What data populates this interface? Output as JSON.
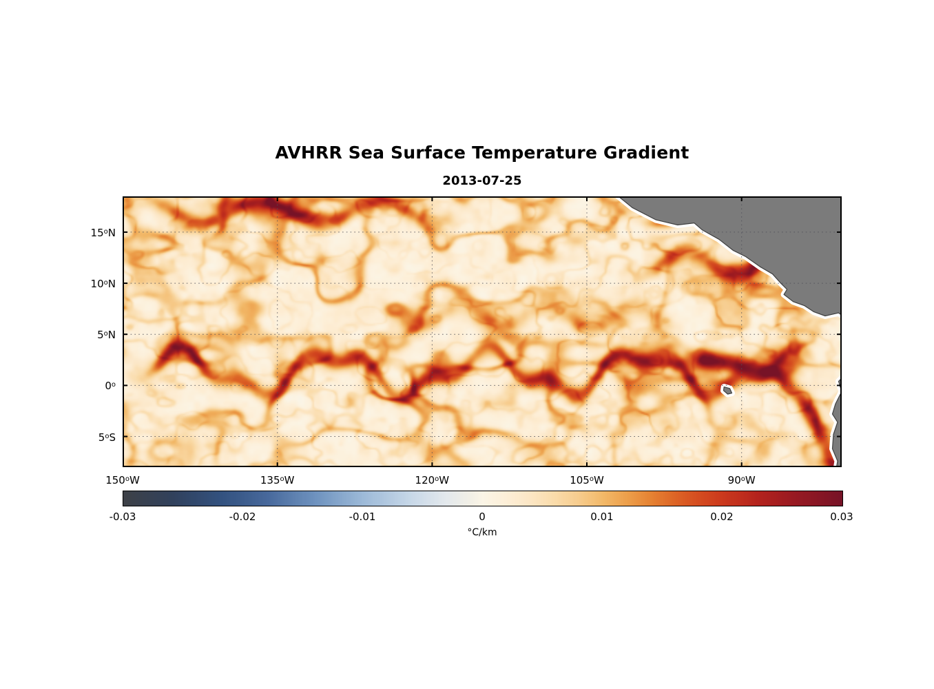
{
  "title": "AVHRR Sea Surface Temperature Gradient",
  "subtitle_date": "2013-07-25",
  "colorbar": {
    "label": "°C/km",
    "ticks": [
      {
        "label": "-0.03",
        "value": -0.03
      },
      {
        "label": "-0.02",
        "value": -0.02
      },
      {
        "label": "-0.01",
        "value": -0.01
      },
      {
        "label": "0",
        "value": 0
      },
      {
        "label": "0.01",
        "value": 0.01
      },
      {
        "label": "0.02",
        "value": 0.02
      },
      {
        "label": "0.03",
        "value": 0.03
      }
    ]
  },
  "chart_data": {
    "type": "heatmap",
    "title": "AVHRR Sea Surface Temperature Gradient",
    "date": "2013-07-25",
    "units": "°C/km",
    "deg_symbol": "o",
    "lon_range": [
      -150,
      -80.3
    ],
    "lat_range": [
      -8,
      18.5
    ],
    "value_range": [
      -0.03,
      0.03
    ],
    "x_ticks": [
      {
        "num": "150",
        "suffix": "W",
        "lon": -150
      },
      {
        "num": "135",
        "suffix": "W",
        "lon": -135
      },
      {
        "num": "120",
        "suffix": "W",
        "lon": -120
      },
      {
        "num": "105",
        "suffix": "W",
        "lon": -105
      },
      {
        "num": "90",
        "suffix": "W",
        "lon": -90
      }
    ],
    "y_ticks": [
      {
        "num": "15",
        "suffix": "N",
        "lat": 15
      },
      {
        "num": "10",
        "suffix": "N",
        "lat": 10
      },
      {
        "num": "5",
        "suffix": "N",
        "lat": 5
      },
      {
        "num": "0",
        "suffix": "",
        "lat": 0
      },
      {
        "num": "5",
        "suffix": "S",
        "lat": -5
      }
    ],
    "grid": {
      "lons": [
        -150,
        -135,
        -120,
        -105,
        -90
      ],
      "lats": [
        15,
        10,
        5,
        0,
        -5
      ],
      "style": "dotted"
    },
    "colormap": [
      {
        "v": -0.03,
        "c": "#3e4147"
      },
      {
        "v": -0.026,
        "c": "#31415c"
      },
      {
        "v": -0.022,
        "c": "#32517e"
      },
      {
        "v": -0.018,
        "c": "#48699c"
      },
      {
        "v": -0.014,
        "c": "#6f93bf"
      },
      {
        "v": -0.01,
        "c": "#9dbad8"
      },
      {
        "v": -0.006,
        "c": "#c8d8e8"
      },
      {
        "v": -0.003,
        "c": "#e4e9ec"
      },
      {
        "v": -0.001,
        "c": "#f3f0e6"
      },
      {
        "v": 0.0,
        "c": "#fbf5e6"
      },
      {
        "v": 0.002,
        "c": "#fdefd8"
      },
      {
        "v": 0.004,
        "c": "#fce6c4"
      },
      {
        "v": 0.006,
        "c": "#fadcab"
      },
      {
        "v": 0.008,
        "c": "#f7cd8f"
      },
      {
        "v": 0.01,
        "c": "#f2b969"
      },
      {
        "v": 0.012,
        "c": "#eda04c"
      },
      {
        "v": 0.014,
        "c": "#e68434"
      },
      {
        "v": 0.016,
        "c": "#dd6526"
      },
      {
        "v": 0.018,
        "c": "#d54d20"
      },
      {
        "v": 0.02,
        "c": "#cc3a1d"
      },
      {
        "v": 0.023,
        "c": "#b4231d"
      },
      {
        "v": 0.026,
        "c": "#991a22"
      },
      {
        "v": 0.03,
        "c": "#771327"
      }
    ],
    "field_model": {
      "texture": {
        "fx": 0.8,
        "fy": 0.8,
        "amp": 0.0022,
        "base": 0.0018
      },
      "fil1": {
        "fx": 0.21,
        "fy": 0.3,
        "w": 0.16,
        "base": 0.004,
        "amp": 0.013
      },
      "fil2": {
        "fx": 0.46,
        "fy": 0.58,
        "w": 0.14,
        "amp": 0.006
      },
      "fronts": [
        {
          "name": "equatorial_tiw_front",
          "lon_min": -150,
          "lon_max": -82.5,
          "taper": 5,
          "base_lat": 1.3,
          "width": 0.9,
          "strength": 0.016,
          "mod_amp": 0.55,
          "harmonics": [
            {
              "amp": 1.8,
              "k": 0.42,
              "phase": -0.7
            },
            {
              "amp": 0.8,
              "k": 1.05,
              "phase": 1.9
            }
          ]
        },
        {
          "name": "north_subtropical_front",
          "lon_min": -150,
          "lon_max": -117,
          "taper": 5,
          "base_lat": 17.0,
          "width": 0.85,
          "strength": 0.012,
          "mod_amp": 0.5,
          "harmonics": [
            {
              "amp": 1.1,
              "k": 0.55,
              "phase": 0.4
            }
          ]
        },
        {
          "name": "necc_front",
          "lon_min": -126,
          "lon_max": -95,
          "taper": 5,
          "base_lat": 6.8,
          "width": 1.0,
          "strength": 0.008,
          "mod_amp": 0.6,
          "harmonics": [
            {
              "amp": 1.0,
              "k": 0.75,
              "phase": 2.1
            }
          ]
        },
        {
          "name": "central_america_front",
          "lon_min": -102,
          "lon_max": -85,
          "taper": 4,
          "base_lat": 12.0,
          "width": 0.9,
          "strength": 0.01,
          "mod_amp": 0.6,
          "harmonics": [
            {
              "amp": 1.2,
              "k": 0.7,
              "phase": 1.0
            }
          ]
        }
      ],
      "coastal_band": {
        "strength": 0.021,
        "width": 0.8,
        "points": [
          [
            -93.5,
            2.6
          ],
          [
            -90.5,
            2.0
          ],
          [
            -88,
            1.6
          ],
          [
            -86,
            0.6
          ],
          [
            -84.3,
            -1.2
          ],
          [
            -83.2,
            -3.0
          ],
          [
            -82.2,
            -4.8
          ],
          [
            -81.6,
            -6.4
          ],
          [
            -81.0,
            -8.2
          ]
        ]
      },
      "blobs": [
        {
          "lon": -97.6,
          "lat": 15.9,
          "rlon": 1.6,
          "rlat": 0.55,
          "strength": 0.014
        },
        {
          "lon": -90.8,
          "lat": 11.3,
          "rlon": 1.1,
          "rlat": 0.9,
          "strength": 0.01
        },
        {
          "lon": -88.6,
          "lat": 11.0,
          "rlon": 1.2,
          "rlat": 2.0,
          "strength": 0.011
        },
        {
          "lon": -138.0,
          "lat": 17.8,
          "rlon": 4.0,
          "rlat": 0.8,
          "strength": 0.01
        },
        {
          "lon": -131.5,
          "lat": 16.6,
          "rlon": 2.2,
          "rlat": 0.6,
          "strength": 0.008
        },
        {
          "lon": -93.0,
          "lat": 2.4,
          "rlon": 3.6,
          "rlat": 1.1,
          "strength": 0.01
        },
        {
          "lon": -85.6,
          "lat": 2.4,
          "rlon": 1.6,
          "rlat": 1.3,
          "strength": 0.012
        },
        {
          "lon": -92.3,
          "lat": 0.2,
          "rlon": 1.3,
          "rlat": 0.6,
          "strength": 0.008
        }
      ]
    },
    "land": {
      "color": "#7b7b7b",
      "outline": "#3f3f3f",
      "mask_halo": "#ffffff",
      "polygons": {
        "central_america": [
          [
            -102.3,
            18.8
          ],
          [
            -100.6,
            17.4
          ],
          [
            -98.3,
            16.2
          ],
          [
            -96.2,
            15.7
          ],
          [
            -94.6,
            15.9
          ],
          [
            -93.8,
            15.2
          ],
          [
            -92.2,
            14.3
          ],
          [
            -90.8,
            13.2
          ],
          [
            -89.6,
            12.6
          ],
          [
            -88.2,
            11.6
          ],
          [
            -87.0,
            10.9
          ],
          [
            -86.2,
            10.0
          ],
          [
            -85.6,
            9.4
          ],
          [
            -85.9,
            8.9
          ],
          [
            -85.0,
            8.2
          ],
          [
            -83.9,
            7.8
          ],
          [
            -83.0,
            7.2
          ],
          [
            -81.9,
            6.8
          ],
          [
            -80.6,
            7.1
          ],
          [
            -79.8,
            6.5
          ],
          [
            -79.8,
            19.2
          ],
          [
            -102.3,
            19.2
          ]
        ],
        "south_america": [
          [
            -79.8,
            1.2
          ],
          [
            -80.6,
            0.4
          ],
          [
            -80.3,
            -0.6
          ],
          [
            -80.9,
            -1.8
          ],
          [
            -81.2,
            -2.8
          ],
          [
            -80.7,
            -3.6
          ],
          [
            -81.1,
            -4.8
          ],
          [
            -81.2,
            -6.2
          ],
          [
            -80.7,
            -7.4
          ],
          [
            -80.9,
            -8.6
          ],
          [
            -79.5,
            -8.6
          ]
        ],
        "galapagos": [
          [
            -91.7,
            -0.15
          ],
          [
            -91.15,
            -0.3
          ],
          [
            -90.95,
            -0.75
          ],
          [
            -91.35,
            -0.85
          ],
          [
            -91.75,
            -0.5
          ]
        ]
      }
    }
  }
}
